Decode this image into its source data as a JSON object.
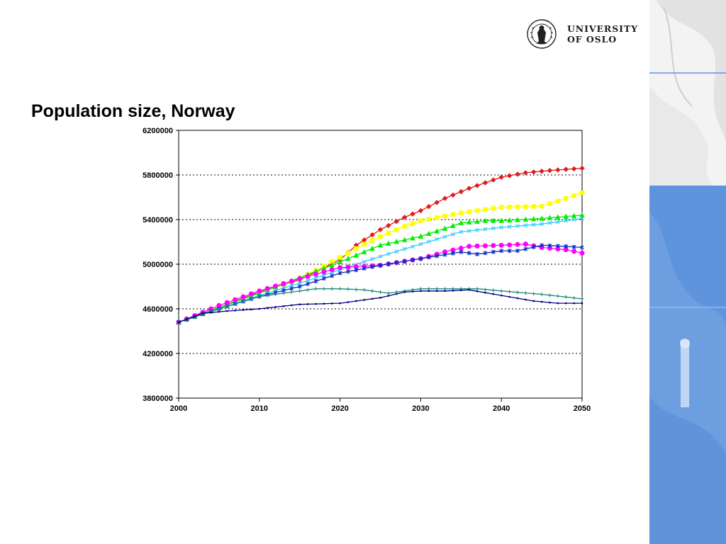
{
  "slide": {
    "title": "Population size, Norway",
    "logo": {
      "line1": "UNIVERSITY",
      "line2": "OF OSLO",
      "seal_text": "UNIVERSITAS OSLOENSIS"
    },
    "colors": {
      "side_blue": "#6d9fe0",
      "side_blue_dark": "#4f86d4",
      "accent_line": "#5b95e6"
    }
  },
  "chart_data": {
    "type": "line",
    "title": "",
    "xlabel": "",
    "ylabel": "",
    "xlim": [
      2000,
      2050
    ],
    "ylim": [
      3800000,
      6200000
    ],
    "x_ticks": [
      2000,
      2010,
      2020,
      2030,
      2040,
      2050
    ],
    "y_ticks": [
      3800000,
      4200000,
      4600000,
      5000000,
      5400000,
      5800000,
      6200000
    ],
    "grid": "horizontal dotted",
    "legend": "none",
    "series": [
      {
        "color": "#e31a1c",
        "marker": "diamond",
        "x": [
          2000,
          2003,
          2006,
          2010,
          2015,
          2020,
          2022,
          2025,
          2028,
          2030,
          2033,
          2036,
          2040,
          2043,
          2046,
          2050
        ],
        "y": [
          4480000,
          4560000,
          4640000,
          4750000,
          4860000,
          5040000,
          5170000,
          5310000,
          5420000,
          5480000,
          5590000,
          5680000,
          5780000,
          5820000,
          5840000,
          5860000
        ]
      },
      {
        "color": "#ffff00",
        "marker": "square",
        "x": [
          2000,
          2005,
          2010,
          2015,
          2020,
          2023,
          2026,
          2028,
          2030,
          2035,
          2040,
          2045,
          2048,
          2050
        ],
        "y": [
          4480000,
          4610000,
          4740000,
          4870000,
          5060000,
          5180000,
          5280000,
          5340000,
          5390000,
          5460000,
          5510000,
          5520000,
          5590000,
          5640000
        ]
      },
      {
        "color": "#00ee00",
        "marker": "triangle",
        "x": [
          2000,
          2005,
          2010,
          2015,
          2020,
          2025,
          2030,
          2033,
          2035,
          2038,
          2040,
          2045,
          2050
        ],
        "y": [
          4480000,
          4610000,
          4740000,
          4880000,
          5020000,
          5170000,
          5250000,
          5320000,
          5370000,
          5390000,
          5390000,
          5410000,
          5440000
        ]
      },
      {
        "color": "#33ccff",
        "marker": "x",
        "x": [
          2000,
          2005,
          2010,
          2015,
          2020,
          2025,
          2030,
          2035,
          2040,
          2045,
          2050
        ],
        "y": [
          4480000,
          4600000,
          4720000,
          4830000,
          4950000,
          5070000,
          5180000,
          5290000,
          5330000,
          5360000,
          5410000
        ]
      },
      {
        "color": "#ff00ff",
        "marker": "circle",
        "x": [
          2000,
          2005,
          2010,
          2015,
          2020,
          2025,
          2030,
          2033,
          2036,
          2040,
          2043,
          2045,
          2048,
          2050
        ],
        "y": [
          4480000,
          4630000,
          4760000,
          4870000,
          4970000,
          4990000,
          5050000,
          5110000,
          5160000,
          5170000,
          5180000,
          5150000,
          5130000,
          5100000
        ]
      },
      {
        "color": "#0a2cc2",
        "marker": "asterisk",
        "x": [
          2000,
          2005,
          2010,
          2015,
          2020,
          2025,
          2030,
          2035,
          2037,
          2040,
          2042,
          2045,
          2048,
          2050
        ],
        "y": [
          4480000,
          4600000,
          4710000,
          4800000,
          4920000,
          4990000,
          5050000,
          5110000,
          5090000,
          5120000,
          5120000,
          5170000,
          5160000,
          5150000
        ]
      },
      {
        "color": "#1a8a7a",
        "marker": "plus",
        "x": [
          2000,
          2005,
          2010,
          2015,
          2017,
          2020,
          2023,
          2026,
          2030,
          2033,
          2037,
          2040,
          2045,
          2050
        ],
        "y": [
          4480000,
          4600000,
          4710000,
          4760000,
          4780000,
          4780000,
          4770000,
          4740000,
          4780000,
          4780000,
          4780000,
          4760000,
          4730000,
          4690000
        ]
      },
      {
        "color": "#00008b",
        "marker": "dot",
        "x": [
          2000,
          2003,
          2006,
          2010,
          2015,
          2020,
          2025,
          2028,
          2030,
          2033,
          2036,
          2040,
          2044,
          2047,
          2050
        ],
        "y": [
          4480000,
          4560000,
          4580000,
          4600000,
          4640000,
          4650000,
          4700000,
          4750000,
          4760000,
          4760000,
          4770000,
          4720000,
          4670000,
          4650000,
          4650000
        ]
      }
    ]
  }
}
